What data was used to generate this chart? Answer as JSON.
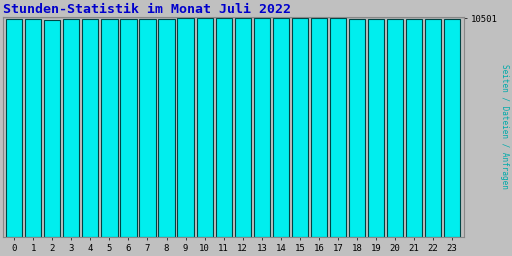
{
  "title": "Stunden-Statistik im Monat Juli 2022",
  "title_color": "#0000cc",
  "ylabel": "Seiten / Dateien / Anfragen",
  "ylabel_color": "#00aaaa",
  "xlabel_labels": [
    "0",
    "1",
    "2",
    "3",
    "4",
    "5",
    "6",
    "7",
    "8",
    "9",
    "10",
    "11",
    "12",
    "13",
    "14",
    "15",
    "16",
    "17",
    "18",
    "19",
    "20",
    "21",
    "22",
    "23"
  ],
  "ytick_label": "10501",
  "background_color": "#c0c0c0",
  "plot_bg_color": "#c0c0c0",
  "bar_color": "#00eeee",
  "bar_edge_color": "#004444",
  "bar_width": 0.85,
  "values": [
    10480,
    10450,
    10430,
    10458,
    10460,
    10468,
    10470,
    10485,
    10475,
    10505,
    10508,
    10522,
    10528,
    10503,
    10504,
    10504,
    10500,
    10490,
    10465,
    10460,
    10475,
    10475,
    10476,
    10440
  ],
  "ymin": 0,
  "ymax": 10560,
  "ytick_value": 10501,
  "figsize": [
    5.12,
    2.56
  ],
  "dpi": 100,
  "spine_color": "#888888",
  "grid_color": "#aaaaaa"
}
